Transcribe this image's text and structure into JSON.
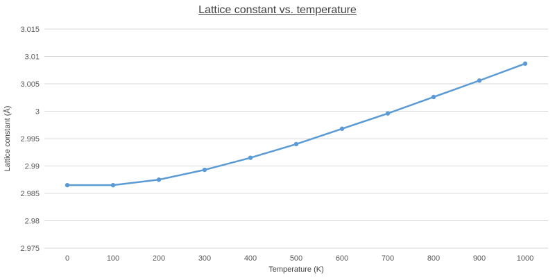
{
  "chart_data": {
    "type": "line",
    "title": "Lattice constant vs. temperature",
    "xlabel": "Temperature (K)",
    "ylabel": "Lattice constant (Å)",
    "x": [
      0,
      100,
      200,
      300,
      400,
      500,
      600,
      700,
      800,
      900,
      1000
    ],
    "series": [
      {
        "values": [
          2.9865,
          2.9865,
          2.9875,
          2.9893,
          2.9915,
          2.994,
          2.9968,
          2.9996,
          3.0026,
          3.0056,
          3.0087
        ]
      }
    ],
    "ylim": [
      2.975,
      3.015
    ],
    "yticks": [
      "2.975",
      "2.98",
      "2.985",
      "2.99",
      "2.995",
      "3",
      "3.005",
      "3.01",
      "3.015"
    ],
    "xticks": [
      "0",
      "100",
      "200",
      "300",
      "400",
      "500",
      "600",
      "700",
      "800",
      "900",
      "1000"
    ],
    "grid": true,
    "legend": "none",
    "colors": {
      "series": "#5b9bd5",
      "grid": "#d9d9d9",
      "text": "#595959"
    }
  }
}
